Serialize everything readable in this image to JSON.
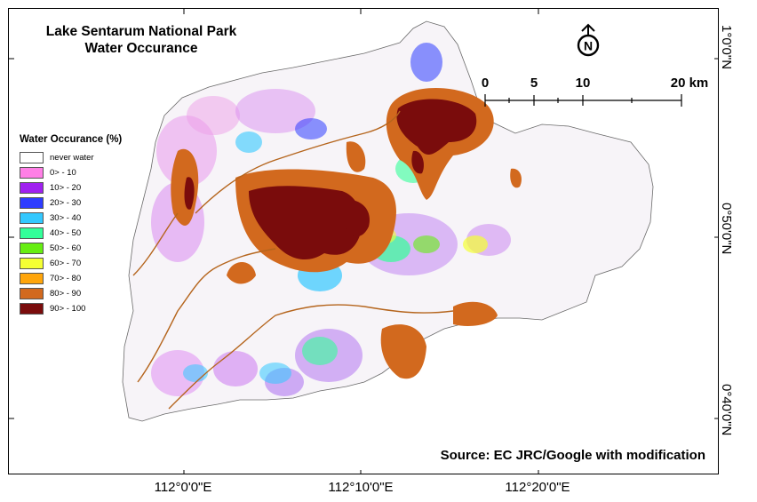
{
  "map": {
    "title_line1": "Lake Sentarum National Park",
    "title_line2": "Water Occurance",
    "source": "Source: EC JRC/Google with modification",
    "north_label": "N",
    "scale": {
      "labels": [
        "0",
        "5",
        "10",
        "20 km"
      ]
    },
    "x_ticks": [
      "112°0'0\"E",
      "112°10'0\"E",
      "112°20'0\"E"
    ],
    "y_ticks": [
      "1°0'0\"N",
      "0°50'0\"N",
      "0°40'0\"N"
    ]
  },
  "legend": {
    "title": "Water Occurance (%)",
    "items": [
      {
        "label": "never water",
        "color": "#ffffff"
      },
      {
        "label": "0> - 10",
        "color": "#ff7fe6"
      },
      {
        "label": "10> - 20",
        "color": "#a020f0"
      },
      {
        "label": "20> - 30",
        "color": "#2e3cff"
      },
      {
        "label": "30> - 40",
        "color": "#33c8ff"
      },
      {
        "label": "40> - 50",
        "color": "#33ff99"
      },
      {
        "label": "50> - 60",
        "color": "#66ee11"
      },
      {
        "label": "60> - 70",
        "color": "#f4ff33"
      },
      {
        "label": "70> - 80",
        "color": "#ffa50a"
      },
      {
        "label": "80> - 90",
        "color": "#d2691e"
      },
      {
        "label": "90> - 100",
        "color": "#7a0c0c"
      }
    ]
  }
}
